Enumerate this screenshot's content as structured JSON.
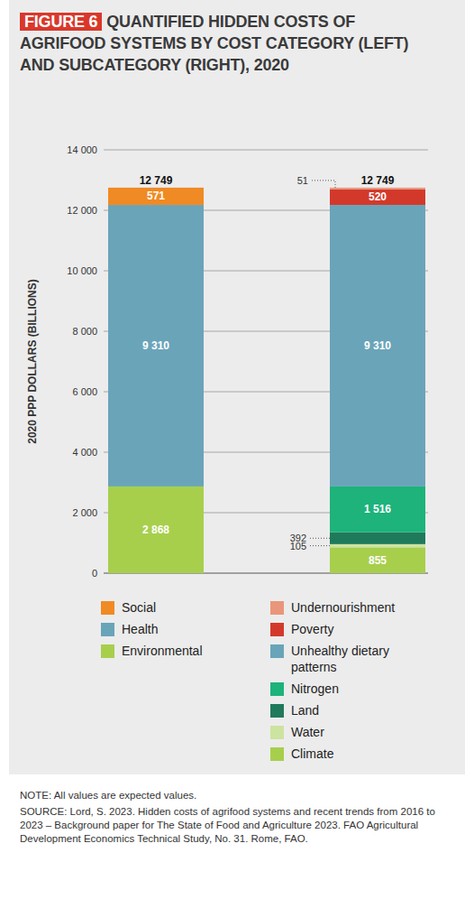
{
  "chart_data": {
    "type": "bar",
    "stacked": true,
    "data_labels": true,
    "grid": true,
    "legend": "bottom",
    "tick_labels": "y",
    "figure_label": "FIGURE 6",
    "title": "QUANTIFIED HIDDEN COSTS OF AGRIFOOD SYSTEMS BY COST CATEGORY (LEFT) AND SUBCATEGORY (RIGHT), 2020",
    "y_label": "2020 PPP DOLLARS (BILLIONS)",
    "categories": [
      null,
      null
    ],
    "ylim": [
      0,
      14000
    ],
    "yticks": [
      0,
      {
        "value": 2000,
        "label": "2 000"
      },
      {
        "value": 4000,
        "label": "4 000"
      },
      {
        "value": 6000,
        "label": "6 000"
      },
      {
        "value": 8000,
        "label": "8 000"
      },
      {
        "value": 10000,
        "label": "10 000"
      },
      {
        "value": 12000,
        "label": "12 000"
      },
      {
        "value": 14000,
        "label": "14 000"
      }
    ],
    "series": [
      {
        "name": "Social",
        "color": "#f08a24",
        "values": [
          571,
          null
        ],
        "value_labels": [
          "571",
          null
        ]
      },
      {
        "name": "Health",
        "color": "#6aa4b9",
        "values": [
          9310,
          null
        ],
        "value_labels": [
          "9 310",
          null
        ]
      },
      {
        "name": "Environmental",
        "color": "#a7cf4c",
        "values": [
          2868,
          null
        ],
        "value_labels": [
          "2 868",
          null
        ]
      },
      {
        "name": "Undernourishment",
        "color": "#e9967b",
        "values": [
          null,
          51
        ],
        "value_labels": [
          null,
          "51"
        ]
      },
      {
        "name": "Poverty",
        "color": "#d3392b",
        "values": [
          null,
          520
        ],
        "value_labels": [
          null,
          "520"
        ]
      },
      {
        "name": "Unhealthy dietary patterns",
        "color": "#6aa4b9",
        "values": [
          null,
          9310
        ],
        "value_labels": [
          null,
          "9 310"
        ]
      },
      {
        "name": "Nitrogen",
        "color": "#1db37a",
        "values": [
          null,
          1516
        ],
        "value_labels": [
          null,
          "1 516"
        ]
      },
      {
        "name": "Land",
        "color": "#1f7a5b",
        "values": [
          null,
          392
        ],
        "value_labels": [
          null,
          "392"
        ]
      },
      {
        "name": "Water",
        "color": "#cde3a0",
        "values": [
          null,
          105
        ],
        "value_labels": [
          null,
          "105"
        ]
      },
      {
        "name": "Climate",
        "color": "#a7cf4c",
        "values": [
          null,
          855
        ],
        "value_labels": [
          null,
          "855"
        ]
      }
    ],
    "totals": [
      12749,
      12749
    ],
    "total_labels": [
      "12 749",
      "12 749"
    ],
    "note": "NOTE: All values are expected values.",
    "source": "SOURCE: Lord, S. 2023. Hidden costs of agrifood systems and recent trends from 2016 to 2023 – Background paper for The State of Food and Agriculture 2023. FAO Agricultural Development Economics Technical Study, No. 31. Rome, FAO."
  }
}
